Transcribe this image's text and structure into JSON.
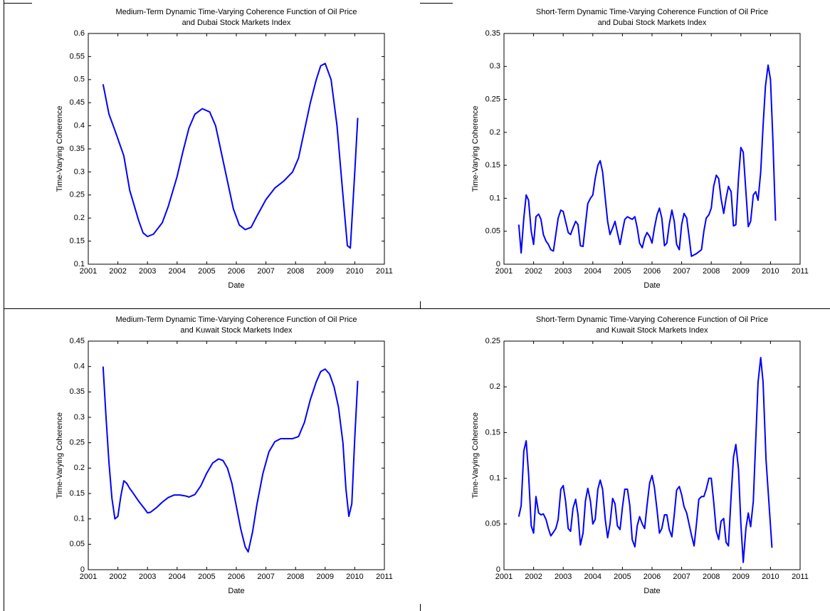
{
  "chart_data": [
    {
      "type": "line",
      "title": [
        "Medium-Term Dynamic Time-Varying Coherence Function of Oil Price",
        "and Dubai Stock Markets Index"
      ],
      "xlabel": "Date",
      "ylabel": "Time-Varying Coherence",
      "color": "#0000ff",
      "xlim": [
        2001,
        2011
      ],
      "xticks": [
        2001,
        2002,
        2003,
        2004,
        2005,
        2006,
        2007,
        2008,
        2009,
        2010,
        2011
      ],
      "ylim": [
        0.1,
        0.6
      ],
      "yticks": [
        0.1,
        0.15,
        0.2,
        0.25,
        0.3,
        0.35,
        0.4,
        0.45,
        0.5,
        0.55,
        0.6
      ],
      "x": [
        2001.5,
        2001.7,
        2001.9,
        2002.2,
        2002.4,
        2002.7,
        2002.85,
        2003.0,
        2003.2,
        2003.5,
        2003.7,
        2004.0,
        2004.2,
        2004.4,
        2004.6,
        2004.85,
        2005.1,
        2005.3,
        2005.5,
        2005.7,
        2005.9,
        2006.1,
        2006.3,
        2006.5,
        2006.7,
        2007.0,
        2007.3,
        2007.6,
        2007.9,
        2008.1,
        2008.3,
        2008.5,
        2008.7,
        2008.85,
        2009.0,
        2009.2,
        2009.4,
        2009.6,
        2009.75,
        2009.85,
        2010.0,
        2010.1
      ],
      "values": [
        0.49,
        0.425,
        0.39,
        0.335,
        0.26,
        0.195,
        0.168,
        0.16,
        0.165,
        0.19,
        0.225,
        0.29,
        0.345,
        0.395,
        0.425,
        0.437,
        0.43,
        0.4,
        0.34,
        0.28,
        0.22,
        0.185,
        0.175,
        0.18,
        0.205,
        0.24,
        0.265,
        0.28,
        0.3,
        0.33,
        0.39,
        0.45,
        0.5,
        0.53,
        0.535,
        0.5,
        0.4,
        0.25,
        0.14,
        0.135,
        0.3,
        0.417
      ]
    },
    {
      "type": "line",
      "title": [
        "Short-Term Dynamic Time-Varying Coherence Function of Oil Price",
        "and Dubai Stock Markets Index"
      ],
      "xlabel": "Date",
      "ylabel": "Time-Varying Coherence",
      "color": "#0000ff",
      "xlim": [
        2001,
        2011
      ],
      "xticks": [
        2001,
        2002,
        2003,
        2004,
        2005,
        2006,
        2007,
        2008,
        2009,
        2010,
        2011
      ],
      "ylim": [
        0,
        0.35
      ],
      "yticks": [
        0,
        0.05,
        0.1,
        0.15,
        0.2,
        0.25,
        0.3,
        0.35
      ],
      "x": [
        2001.5,
        2001.58,
        2001.67,
        2001.75,
        2001.83,
        2001.92,
        2002.0,
        2002.08,
        2002.17,
        2002.25,
        2002.33,
        2002.42,
        2002.5,
        2002.58,
        2002.67,
        2002.75,
        2002.83,
        2002.92,
        2003.0,
        2003.08,
        2003.17,
        2003.25,
        2003.33,
        2003.42,
        2003.5,
        2003.58,
        2003.67,
        2003.75,
        2003.83,
        2003.92,
        2004.0,
        2004.08,
        2004.17,
        2004.25,
        2004.33,
        2004.42,
        2004.5,
        2004.58,
        2004.67,
        2004.75,
        2004.83,
        2004.92,
        2005.0,
        2005.08,
        2005.17,
        2005.25,
        2005.33,
        2005.42,
        2005.5,
        2005.58,
        2005.67,
        2005.75,
        2005.83,
        2005.92,
        2006.0,
        2006.08,
        2006.17,
        2006.25,
        2006.33,
        2006.42,
        2006.5,
        2006.58,
        2006.67,
        2006.75,
        2006.83,
        2006.92,
        2007.0,
        2007.08,
        2007.17,
        2007.25,
        2007.33,
        2007.5,
        2007.67,
        2007.75,
        2007.83,
        2007.92,
        2008.0,
        2008.08,
        2008.17,
        2008.25,
        2008.33,
        2008.42,
        2008.5,
        2008.58,
        2008.67,
        2008.75,
        2008.83,
        2008.92,
        2009.0,
        2009.08,
        2009.17,
        2009.25,
        2009.33,
        2009.42,
        2009.5,
        2009.58,
        2009.67,
        2009.75,
        2009.83,
        2009.92,
        2010.0,
        2010.08,
        2010.17
      ],
      "values": [
        0.06,
        0.017,
        0.07,
        0.105,
        0.097,
        0.05,
        0.03,
        0.072,
        0.076,
        0.068,
        0.045,
        0.035,
        0.03,
        0.022,
        0.02,
        0.045,
        0.07,
        0.082,
        0.08,
        0.065,
        0.048,
        0.045,
        0.055,
        0.065,
        0.06,
        0.028,
        0.027,
        0.06,
        0.092,
        0.1,
        0.105,
        0.13,
        0.15,
        0.157,
        0.14,
        0.1,
        0.065,
        0.045,
        0.055,
        0.065,
        0.048,
        0.03,
        0.05,
        0.068,
        0.072,
        0.07,
        0.068,
        0.072,
        0.055,
        0.032,
        0.025,
        0.04,
        0.048,
        0.042,
        0.032,
        0.055,
        0.075,
        0.085,
        0.07,
        0.028,
        0.032,
        0.06,
        0.082,
        0.065,
        0.03,
        0.022,
        0.06,
        0.077,
        0.07,
        0.042,
        0.012,
        0.016,
        0.022,
        0.05,
        0.07,
        0.075,
        0.085,
        0.118,
        0.135,
        0.13,
        0.1,
        0.077,
        0.1,
        0.118,
        0.11,
        0.058,
        0.06,
        0.13,
        0.177,
        0.17,
        0.11,
        0.057,
        0.065,
        0.105,
        0.11,
        0.097,
        0.14,
        0.21,
        0.27,
        0.302,
        0.28,
        0.19,
        0.066
      ]
    },
    {
      "type": "line",
      "title": [
        "Medium-Term Dynamic Time-Varying Coherence Function of Oil Price",
        "and Kuwait Stock Markets Index"
      ],
      "xlabel": "Date",
      "ylabel": "Time-Varying Coherence",
      "color": "#0000ff",
      "xlim": [
        2001,
        2011
      ],
      "xticks": [
        2001,
        2002,
        2003,
        2004,
        2005,
        2006,
        2007,
        2008,
        2009,
        2010,
        2011
      ],
      "ylim": [
        0,
        0.45
      ],
      "yticks": [
        0,
        0.05,
        0.1,
        0.15,
        0.2,
        0.25,
        0.3,
        0.35,
        0.4,
        0.45
      ],
      "x": [
        2001.5,
        2001.6,
        2001.7,
        2001.8,
        2001.9,
        2002.0,
        2002.1,
        2002.2,
        2002.3,
        2002.4,
        2002.5,
        2002.7,
        2002.9,
        2003.0,
        2003.1,
        2003.3,
        2003.5,
        2003.7,
        2003.9,
        2004.1,
        2004.3,
        2004.4,
        2004.6,
        2004.8,
        2005.0,
        2005.2,
        2005.4,
        2005.55,
        2005.7,
        2005.85,
        2006.0,
        2006.15,
        2006.3,
        2006.4,
        2006.55,
        2006.7,
        2006.9,
        2007.1,
        2007.3,
        2007.5,
        2007.7,
        2007.9,
        2008.1,
        2008.3,
        2008.5,
        2008.7,
        2008.85,
        2009.0,
        2009.15,
        2009.3,
        2009.45,
        2009.6,
        2009.7,
        2009.8,
        2009.9,
        2010.0,
        2010.1
      ],
      "values": [
        0.4,
        0.3,
        0.21,
        0.14,
        0.1,
        0.105,
        0.145,
        0.175,
        0.17,
        0.16,
        0.152,
        0.135,
        0.12,
        0.112,
        0.113,
        0.122,
        0.133,
        0.142,
        0.147,
        0.147,
        0.145,
        0.143,
        0.148,
        0.165,
        0.19,
        0.21,
        0.218,
        0.215,
        0.2,
        0.17,
        0.125,
        0.08,
        0.045,
        0.035,
        0.075,
        0.13,
        0.19,
        0.232,
        0.252,
        0.258,
        0.258,
        0.258,
        0.262,
        0.29,
        0.335,
        0.37,
        0.39,
        0.395,
        0.385,
        0.36,
        0.32,
        0.25,
        0.16,
        0.105,
        0.13,
        0.26,
        0.372
      ]
    },
    {
      "type": "line",
      "title": [
        "Short-Term Dynamic Time-Varying Coherence Function of Oil Price",
        "and Kuwait Stock Markets Index"
      ],
      "xlabel": "Date",
      "ylabel": "Time-Varying Coherence",
      "color": "#0000ff",
      "xlim": [
        2001,
        2011
      ],
      "xticks": [
        2001,
        2002,
        2003,
        2004,
        2005,
        2006,
        2007,
        2008,
        2009,
        2010,
        2011
      ],
      "ylim": [
        0,
        0.25
      ],
      "yticks": [
        0,
        0.05,
        0.1,
        0.15,
        0.2,
        0.25
      ],
      "x": [
        2001.5,
        2001.58,
        2001.67,
        2001.75,
        2001.83,
        2001.92,
        2002.0,
        2002.08,
        2002.17,
        2002.25,
        2002.33,
        2002.42,
        2002.5,
        2002.58,
        2002.67,
        2002.75,
        2002.83,
        2002.92,
        2003.0,
        2003.08,
        2003.17,
        2003.25,
        2003.33,
        2003.42,
        2003.5,
        2003.58,
        2003.67,
        2003.75,
        2003.83,
        2003.92,
        2004.0,
        2004.08,
        2004.17,
        2004.25,
        2004.33,
        2004.42,
        2004.5,
        2004.58,
        2004.67,
        2004.75,
        2004.83,
        2004.92,
        2005.0,
        2005.08,
        2005.17,
        2005.25,
        2005.33,
        2005.42,
        2005.5,
        2005.58,
        2005.67,
        2005.75,
        2005.83,
        2005.92,
        2006.0,
        2006.08,
        2006.17,
        2006.25,
        2006.33,
        2006.42,
        2006.5,
        2006.58,
        2006.67,
        2006.75,
        2006.83,
        2006.92,
        2007.0,
        2007.08,
        2007.17,
        2007.25,
        2007.33,
        2007.42,
        2007.5,
        2007.58,
        2007.67,
        2007.75,
        2007.83,
        2007.92,
        2008.0,
        2008.08,
        2008.17,
        2008.25,
        2008.33,
        2008.42,
        2008.5,
        2008.58,
        2008.67,
        2008.75,
        2008.83,
        2008.92,
        2009.0,
        2009.08,
        2009.17,
        2009.25,
        2009.33,
        2009.42,
        2009.5,
        2009.58,
        2009.67,
        2009.75,
        2009.85,
        2010.05
      ],
      "values": [
        0.058,
        0.07,
        0.13,
        0.141,
        0.105,
        0.048,
        0.04,
        0.08,
        0.062,
        0.06,
        0.061,
        0.055,
        0.045,
        0.037,
        0.041,
        0.045,
        0.055,
        0.088,
        0.092,
        0.075,
        0.045,
        0.042,
        0.067,
        0.077,
        0.06,
        0.027,
        0.04,
        0.075,
        0.089,
        0.075,
        0.05,
        0.055,
        0.088,
        0.098,
        0.088,
        0.055,
        0.035,
        0.05,
        0.078,
        0.072,
        0.048,
        0.044,
        0.068,
        0.088,
        0.088,
        0.07,
        0.033,
        0.025,
        0.048,
        0.058,
        0.05,
        0.045,
        0.07,
        0.095,
        0.103,
        0.09,
        0.065,
        0.04,
        0.045,
        0.06,
        0.06,
        0.044,
        0.036,
        0.06,
        0.087,
        0.091,
        0.082,
        0.069,
        0.062,
        0.05,
        0.038,
        0.026,
        0.05,
        0.077,
        0.08,
        0.08,
        0.088,
        0.1,
        0.1,
        0.075,
        0.042,
        0.033,
        0.053,
        0.056,
        0.03,
        0.026,
        0.08,
        0.123,
        0.137,
        0.11,
        0.05,
        0.008,
        0.045,
        0.062,
        0.047,
        0.075,
        0.14,
        0.205,
        0.232,
        0.205,
        0.12,
        0.024
      ]
    }
  ]
}
